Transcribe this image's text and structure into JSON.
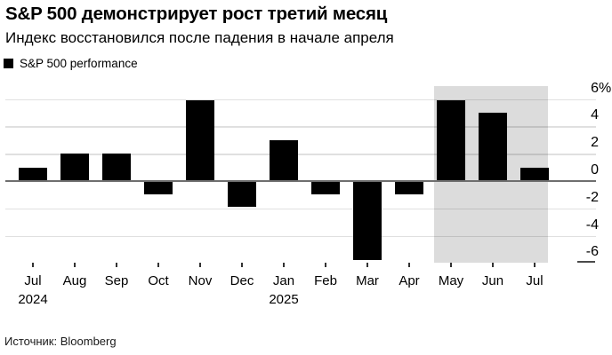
{
  "header": {
    "title": "S&P 500 демонстрирует рост третий месяц",
    "subtitle": "Индекс восстановился после падения в начале апреля"
  },
  "legend": {
    "label": "S&P 500 performance",
    "swatch_color": "#000000"
  },
  "source": "Источник: Bloomberg",
  "chart_data": {
    "type": "bar",
    "title": "S&P 500 демонстрирует рост третий месяц",
    "subtitle": "Индекс восстановился после падения в начале апреля",
    "series_name": "S&P 500 performance",
    "categories": [
      "Jul",
      "Aug",
      "Sep",
      "Oct",
      "Nov",
      "Dec",
      "Jan",
      "Feb",
      "Mar",
      "Apr",
      "May",
      "Jun",
      "Jul"
    ],
    "year_markers": [
      {
        "index": 0,
        "label": "2024"
      },
      {
        "index": 6,
        "label": "2025"
      }
    ],
    "values": [
      1.0,
      2.0,
      2.0,
      -1.0,
      5.9,
      -1.9,
      3.0,
      -1.0,
      -5.8,
      -1.0,
      5.9,
      5.0,
      1.0
    ],
    "unit": "%",
    "ylim": [
      -6,
      7
    ],
    "yticks": [
      {
        "value": 6,
        "label": "6",
        "suffix": "%"
      },
      {
        "value": 4,
        "label": "4"
      },
      {
        "value": 2,
        "label": "2"
      },
      {
        "value": 0,
        "label": "0"
      },
      {
        "value": -2,
        "label": "-2"
      },
      {
        "value": -4,
        "label": "-4"
      },
      {
        "value": -6,
        "label": "-6"
      }
    ],
    "grid": true,
    "legend_position": "top-left",
    "bar_color": "#000000",
    "zero_line_color": "#6e6e6e",
    "highlight_band": {
      "from_category_index": 10,
      "to_category_index": 12,
      "color": "#dcdcdc"
    }
  }
}
